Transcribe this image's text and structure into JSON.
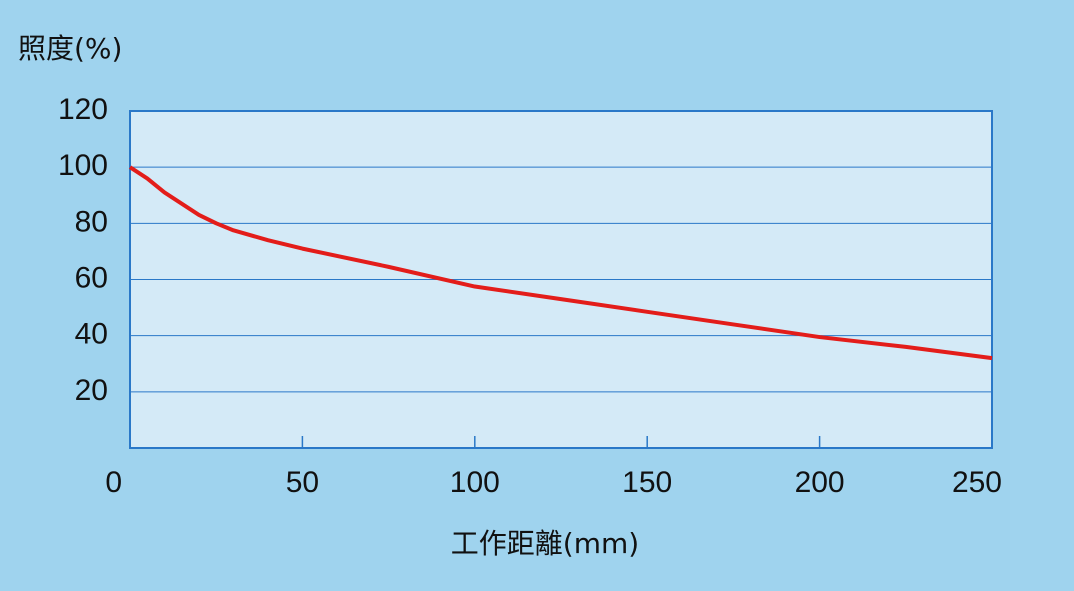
{
  "chart_data": {
    "type": "line",
    "y_label": "照度(%)",
    "x_label": "工作距離(mm)",
    "x": [
      0,
      5,
      10,
      15,
      20,
      25,
      30,
      40,
      50,
      75,
      100,
      125,
      150,
      175,
      200,
      225,
      250
    ],
    "series": [
      {
        "name": "照度",
        "color": "#e31d1a",
        "values": [
          100,
          96,
          91,
          87,
          83,
          80,
          77.5,
          74,
          71,
          64.5,
          57.5,
          53,
          48.5,
          44,
          39.5,
          36,
          32
        ]
      }
    ],
    "xlim": [
      0,
      250
    ],
    "xticks": [
      0,
      50,
      100,
      150,
      200,
      250
    ],
    "ylim": [
      0,
      120
    ],
    "yticks": [
      20,
      40,
      60,
      80,
      100,
      120
    ],
    "grid": true
  }
}
